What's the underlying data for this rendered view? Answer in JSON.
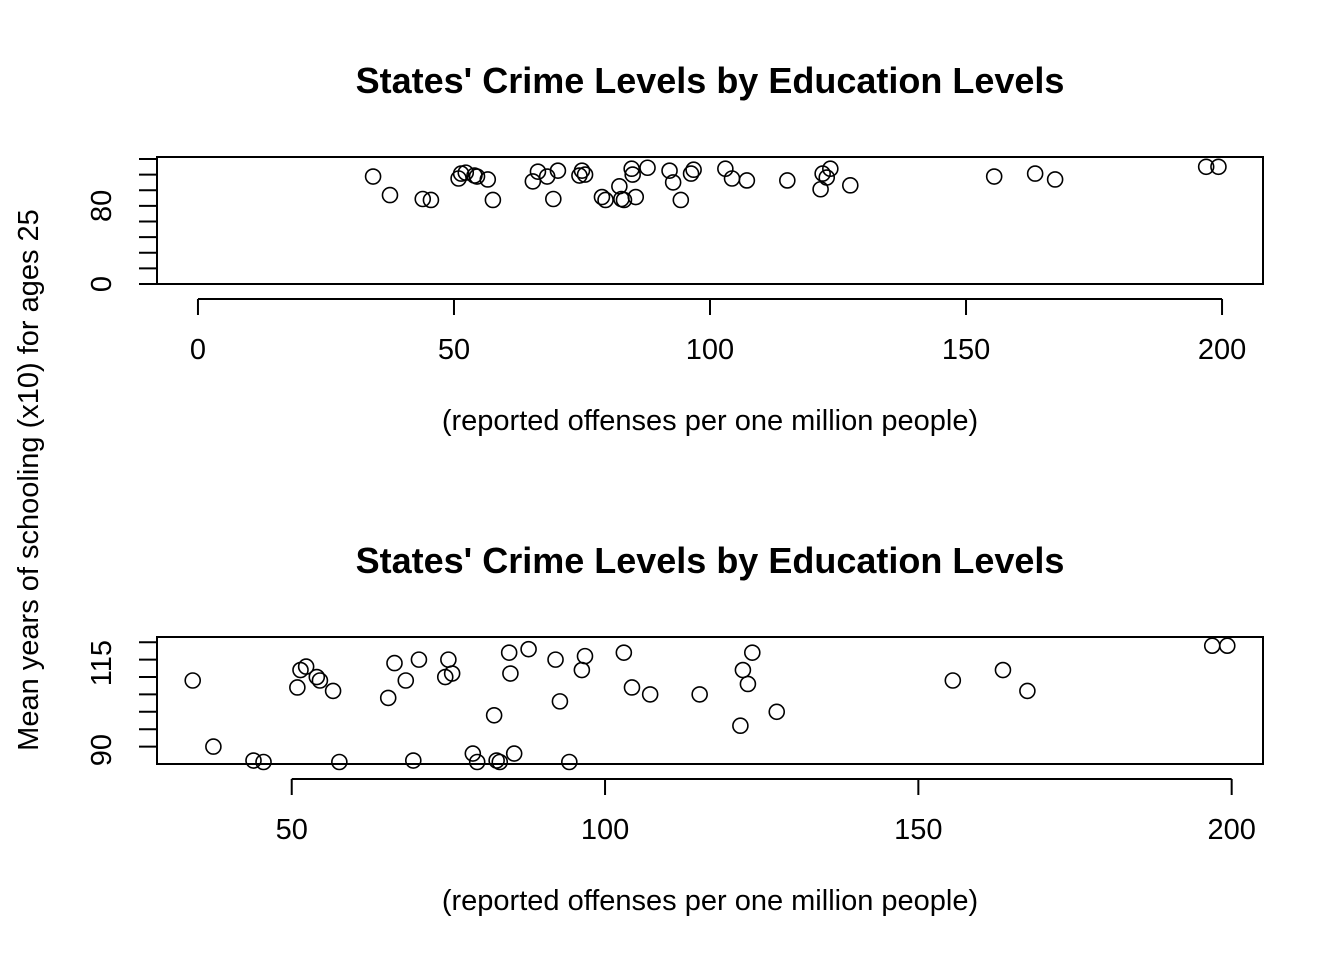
{
  "chart_data": [
    {
      "type": "scatter",
      "title": "States' Crime Levels by Education Levels",
      "xlabel": "(reported offenses per one million people)",
      "ylabel": "Mean years of schooling (x10) for ages 25",
      "xlim": [
        -8,
        208
      ],
      "ylim": [
        0,
        130
      ],
      "x_ticks": [
        0,
        50,
        100,
        150,
        200
      ],
      "y_ticks": [
        0,
        80
      ],
      "grid": false,
      "series": [
        {
          "x": [
            34.2,
            37.5,
            43.9,
            45.5,
            50.9,
            51.4,
            52.3,
            54.0,
            54.5,
            56.6,
            57.6,
            65.4,
            66.4,
            68.2,
            69.4,
            70.3,
            74.5,
            75.0,
            75.6,
            78.9,
            79.6,
            82.3,
            82.7,
            83.2,
            84.7,
            84.9,
            85.5,
            87.8,
            92.1,
            92.8,
            94.3,
            96.3,
            96.8,
            103.0,
            104.3,
            107.2,
            115.1,
            121.6,
            122.0,
            122.8,
            123.5,
            127.4,
            155.5,
            163.5,
            167.4,
            196.9,
            199.3
          ],
          "y": [
            110,
            91,
            87,
            86,
            108,
            113,
            114,
            111,
            110,
            107,
            86,
            105,
            115,
            110,
            87,
            116,
            111,
            116,
            112,
            89,
            86,
            100,
            87,
            86,
            118,
            112,
            89,
            119,
            116,
            104,
            86,
            113,
            117,
            118,
            108,
            106,
            106,
            97,
            113,
            109,
            118,
            101,
            110,
            113,
            107,
            120,
            120
          ]
        }
      ]
    },
    {
      "type": "scatter",
      "title": "States' Crime Levels by Education Levels",
      "xlabel": "(reported offenses per one million people)",
      "ylabel": "Mean years of schooling (x10) for ages 25",
      "xlim": [
        28.5,
        205
      ],
      "ylim": [
        86,
        122.5
      ],
      "x_ticks": [
        50,
        100,
        150,
        200
      ],
      "y_ticks": [
        90,
        115
      ],
      "grid": false,
      "series": [
        {
          "x": [
            34.2,
            37.5,
            43.9,
            45.5,
            50.9,
            51.4,
            52.3,
            54.0,
            54.5,
            56.6,
            57.6,
            65.4,
            66.4,
            68.2,
            69.4,
            70.3,
            74.5,
            75.0,
            75.6,
            78.9,
            79.6,
            82.3,
            82.7,
            83.2,
            84.7,
            84.9,
            85.5,
            87.8,
            92.1,
            92.8,
            94.3,
            96.3,
            96.8,
            103.0,
            104.3,
            107.2,
            115.1,
            121.6,
            122.0,
            122.8,
            123.5,
            127.4,
            155.5,
            163.5,
            167.4,
            196.9,
            199.3
          ],
          "y": [
            110,
            91,
            87,
            86,
            108,
            113,
            114,
            111,
            110,
            107,
            86,
            105,
            115,
            110,
            87,
            116,
            111,
            116,
            112,
            89,
            86,
            100,
            87,
            86,
            118,
            112,
            89,
            119,
            116,
            104,
            86,
            113,
            117,
            118,
            108,
            106,
            106,
            97,
            113,
            109,
            118,
            101,
            110,
            113,
            107,
            120,
            120
          ]
        }
      ]
    }
  ]
}
